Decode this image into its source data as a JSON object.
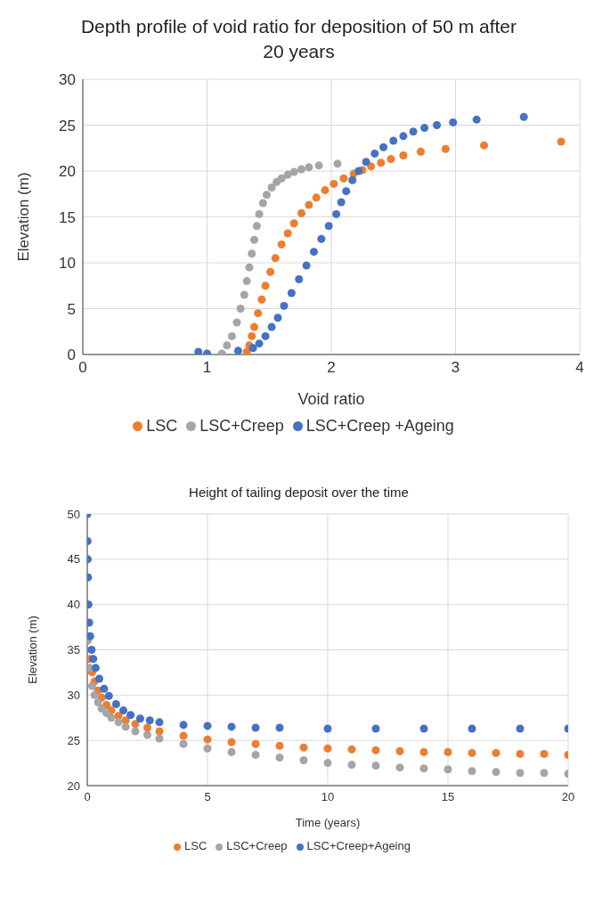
{
  "chart_data": [
    {
      "type": "scatter",
      "title": "Depth profile of void ratio for deposition of 50 m after 20 years",
      "xlabel": "Void ratio",
      "ylabel": "Elevation (m)",
      "xlim": [
        0,
        4
      ],
      "xticks": [
        0,
        1,
        2,
        3,
        4
      ],
      "ylim": [
        0,
        30
      ],
      "yticks": [
        0,
        5,
        10,
        15,
        20,
        25,
        30
      ],
      "grid": true,
      "legend": "bottom",
      "marker": "circle",
      "series": [
        {
          "name": "LSC",
          "color": "#ed7d31",
          "x": [
            1.32,
            1.34,
            1.36,
            1.38,
            1.41,
            1.44,
            1.47,
            1.51,
            1.55,
            1.6,
            1.65,
            1.7,
            1.76,
            1.82,
            1.88,
            1.95,
            2.02,
            2.1,
            2.18,
            2.25,
            2.32,
            2.4,
            2.48,
            2.58,
            2.72,
            2.92,
            3.23,
            3.85
          ],
          "values": [
            0.3,
            1,
            2,
            3,
            4.5,
            6,
            7.5,
            9,
            10.5,
            12,
            13.2,
            14.3,
            15.4,
            16.3,
            17.1,
            17.9,
            18.6,
            19.2,
            19.7,
            20.1,
            20.5,
            20.9,
            21.3,
            21.7,
            22.1,
            22.4,
            22.8,
            23.2
          ]
        },
        {
          "name": "LSC+Creep",
          "color": "#a5a5a5",
          "x": [
            1.12,
            1.16,
            1.2,
            1.24,
            1.27,
            1.3,
            1.32,
            1.34,
            1.36,
            1.38,
            1.4,
            1.42,
            1.45,
            1.48,
            1.52,
            1.56,
            1.6,
            1.65,
            1.7,
            1.76,
            1.82,
            1.9,
            2.05
          ],
          "values": [
            0.1,
            1,
            2,
            3.5,
            5,
            6.5,
            8,
            9.5,
            11,
            12.5,
            14,
            15.3,
            16.5,
            17.4,
            18.2,
            18.8,
            19.2,
            19.6,
            19.9,
            20.2,
            20.4,
            20.6,
            20.8
          ]
        },
        {
          "name": "LSC+Creep +Ageing",
          "color": "#4472c4",
          "x": [
            0.93,
            1.0,
            1.25,
            1.37,
            1.42,
            1.47,
            1.52,
            1.57,
            1.62,
            1.68,
            1.74,
            1.8,
            1.86,
            1.92,
            1.98,
            2.04,
            2.08,
            2.12,
            2.17,
            2.22,
            2.28,
            2.35,
            2.42,
            2.5,
            2.58,
            2.66,
            2.75,
            2.85,
            2.98,
            3.17,
            3.55
          ],
          "values": [
            0.3,
            0.1,
            0.4,
            0.7,
            1.2,
            2,
            3,
            4,
            5.3,
            6.7,
            8.2,
            9.7,
            11.2,
            12.6,
            14,
            15.3,
            16.6,
            17.8,
            19,
            20,
            21,
            21.9,
            22.6,
            23.3,
            23.8,
            24.3,
            24.7,
            25,
            25.3,
            25.6,
            25.9
          ]
        }
      ]
    },
    {
      "type": "scatter",
      "title": "Height of tailing deposit over the time",
      "xlabel": "Time (years)",
      "ylabel": "Elevation (m)",
      "xlim": [
        0,
        20
      ],
      "xticks": [
        0,
        5,
        10,
        15,
        20
      ],
      "ylim": [
        20,
        50
      ],
      "yticks": [
        20,
        25,
        30,
        35,
        40,
        45,
        50
      ],
      "grid": true,
      "legend": "bottom",
      "marker": "circle",
      "series": [
        {
          "name": "LSC",
          "color": "#ed7d31",
          "x": [
            0.1,
            0.2,
            0.3,
            0.45,
            0.6,
            0.8,
            1,
            1.3,
            1.6,
            2,
            2.5,
            3,
            4,
            5,
            6,
            7,
            8,
            9,
            10,
            11,
            12,
            13,
            14,
            15,
            16,
            17,
            18,
            19,
            20
          ],
          "values": [
            34,
            32.5,
            31.5,
            30.5,
            29.7,
            28.9,
            28.3,
            27.7,
            27.2,
            26.8,
            26.4,
            26,
            25.5,
            25.1,
            24.8,
            24.6,
            24.4,
            24.2,
            24.1,
            24,
            23.9,
            23.8,
            23.7,
            23.7,
            23.6,
            23.6,
            23.5,
            23.5,
            23.4
          ]
        },
        {
          "name": "LSC+Creep",
          "color": "#a5a5a5",
          "x": [
            0.02,
            0.1,
            0.2,
            0.3,
            0.45,
            0.6,
            0.8,
            1,
            1.3,
            1.6,
            2,
            2.5,
            3,
            4,
            5,
            6,
            7,
            8,
            9,
            10,
            11,
            12,
            13,
            14,
            15,
            16,
            17,
            18,
            19,
            20
          ],
          "values": [
            36,
            33,
            31,
            30,
            29.2,
            28.5,
            28,
            27.5,
            27,
            26.5,
            26,
            25.6,
            25.2,
            24.6,
            24.1,
            23.7,
            23.4,
            23.1,
            22.8,
            22.5,
            22.3,
            22.2,
            22,
            21.9,
            21.8,
            21.6,
            21.5,
            21.4,
            21.4,
            21.3
          ]
        },
        {
          "name": "LSC+Creep+Ageing",
          "color": "#4472c4",
          "x": [
            0,
            0.01,
            0.02,
            0.03,
            0.05,
            0.08,
            0.12,
            0.18,
            0.25,
            0.35,
            0.5,
            0.7,
            0.9,
            1.2,
            1.5,
            1.8,
            2.2,
            2.6,
            3,
            4,
            5,
            6,
            7,
            8,
            10,
            12,
            14,
            16,
            18,
            20
          ],
          "values": [
            50,
            47,
            45,
            43,
            40,
            38,
            36.5,
            35,
            34,
            33,
            31.8,
            30.7,
            29.9,
            29,
            28.3,
            27.8,
            27.4,
            27.2,
            27,
            26.7,
            26.6,
            26.5,
            26.4,
            26.4,
            26.3,
            26.3,
            26.3,
            26.3,
            26.3,
            26.3
          ]
        }
      ]
    }
  ]
}
